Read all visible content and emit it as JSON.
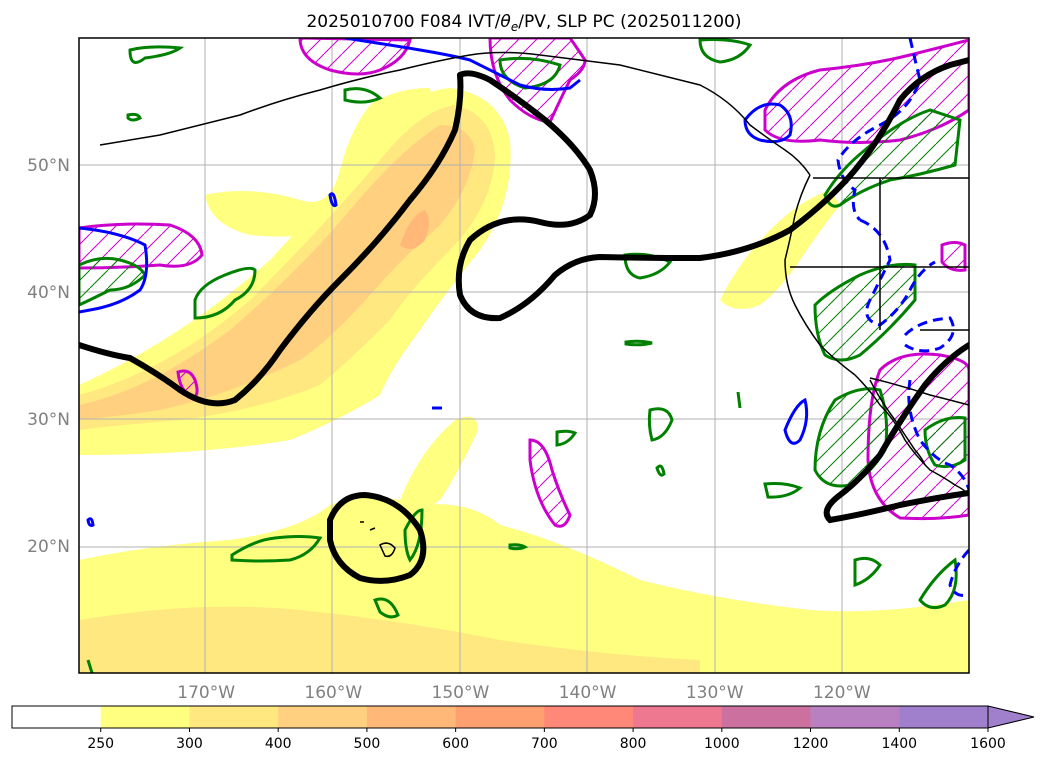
{
  "title": {
    "prefix": "2025010700 F084 IVT/",
    "theta": "θ",
    "theta_sub": "e",
    "suffix": "/PV, SLP PC (2025011200)"
  },
  "map": {
    "lon_range": [
      -180,
      -110
    ],
    "lat_range": [
      10,
      60
    ],
    "lon_ticks": [
      {
        "value": -170,
        "label": "170°W"
      },
      {
        "value": -160,
        "label": "160°W"
      },
      {
        "value": -150,
        "label": "150°W"
      },
      {
        "value": -140,
        "label": "140°W"
      },
      {
        "value": -130,
        "label": "130°W"
      },
      {
        "value": -120,
        "label": "120°W"
      }
    ],
    "lat_ticks": [
      {
        "value": 50,
        "label": "50°N"
      },
      {
        "value": 40,
        "label": "40°N"
      },
      {
        "value": 30,
        "label": "30°N"
      },
      {
        "value": 20,
        "label": "20°N"
      }
    ],
    "grid": true
  },
  "colorbar": {
    "levels": [
      "250",
      "300",
      "400",
      "500",
      "600",
      "700",
      "800",
      "1000",
      "1200",
      "1400",
      "1600"
    ],
    "colors": [
      "#ffffff",
      "#ffff80",
      "#ffe880",
      "#ffd080",
      "#ffb878",
      "#ffa070",
      "#ff8878",
      "#ee7890",
      "#cc70a0",
      "#b880c0",
      "#a080cc"
    ],
    "extend": "max"
  },
  "colors": {
    "slp_contour": "#000000",
    "theta_e_positive": "#0000ff",
    "pv": "#cc00cc",
    "theta_e_anomaly": "#008000",
    "coastline": "#000000",
    "grid": "#b0b0b0"
  }
}
